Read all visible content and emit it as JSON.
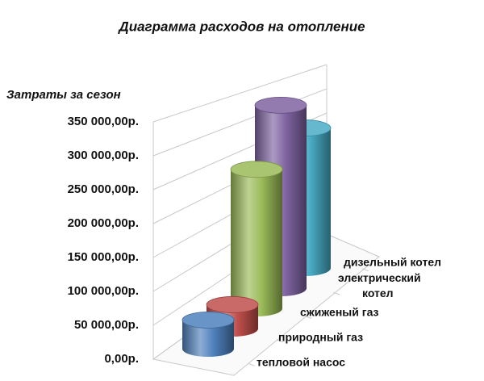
{
  "chart_data": {
    "type": "cylinder",
    "title": "Диаграмма расходов на отопление",
    "y_label": "Затраты за сезон",
    "categories": [
      "тепловой насос",
      "природный газ",
      "сжиженый газ",
      "электрический котел",
      "дизельный котел"
    ],
    "values": [
      45000,
      40000,
      250000,
      355000,
      295000
    ],
    "colors": [
      "#4f81bd",
      "#c0504d",
      "#9bbb59",
      "#8064a2",
      "#4bacc6"
    ],
    "ylim": [
      0,
      350000
    ],
    "yticks": [
      {
        "value": 0,
        "label": "0,00р."
      },
      {
        "value": 50000,
        "label": "50 000,00р."
      },
      {
        "value": 100000,
        "label": "100 000,00р."
      },
      {
        "value": 150000,
        "label": "150 000,00р."
      },
      {
        "value": 200000,
        "label": "200 000,00р."
      },
      {
        "value": 250000,
        "label": "250 000,00р."
      },
      {
        "value": 300000,
        "label": "300 000,00р."
      },
      {
        "value": 350000,
        "label": "350 000,00р."
      }
    ],
    "grid": true
  }
}
